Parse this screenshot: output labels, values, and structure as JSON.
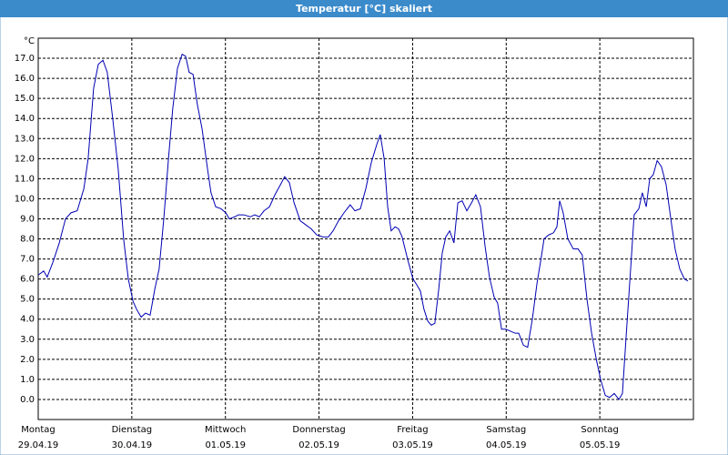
{
  "chart_data": {
    "type": "line",
    "title": "Temperatur [°C] skaliert",
    "y_unit": "°C",
    "x": [
      0,
      1.4,
      2.3,
      3.7,
      5.4,
      7.0,
      8.4,
      10.0,
      11.7,
      12.8,
      14.2,
      15.4,
      16.6,
      17.7,
      19.1,
      20.5,
      21.9,
      23.1,
      24.3,
      25.2,
      26.4,
      27.5,
      28.7,
      29.9,
      31.0,
      32.2,
      33.4,
      34.5,
      35.7,
      36.9,
      37.8,
      38.7,
      39.7,
      40.8,
      42.0,
      43.4,
      44.3,
      45.5,
      46.9,
      48.1,
      49.0,
      50.4,
      51.3,
      52.7,
      54.4,
      55.5,
      56.7,
      57.9,
      59.3,
      60.7,
      62.1,
      63.2,
      64.4,
      65.6,
      67.2,
      68.6,
      70.0,
      71.4,
      73.0,
      74.4,
      75.6,
      77.0,
      78.4,
      80.0,
      81.2,
      82.6,
      84.0,
      85.4,
      86.8,
      87.7,
      88.7,
      89.6,
      90.5,
      91.5,
      92.4,
      93.3,
      94.7,
      96.1,
      97.1,
      98.0,
      98.9,
      99.9,
      100.8,
      101.7,
      102.7,
      103.6,
      104.5,
      105.5,
      106.6,
      107.6,
      108.7,
      109.9,
      111.1,
      112.2,
      113.4,
      114.6,
      115.7,
      116.9,
      117.8,
      118.8,
      119.9,
      121.1,
      122.3,
      123.2,
      124.4,
      125.5,
      126.7,
      127.9,
      129.0,
      129.7,
      130.9,
      132.1,
      133.0,
      133.7,
      134.6,
      135.8,
      137.2,
      138.4,
      139.5,
      140.7,
      141.9,
      143.1,
      144.2,
      145.4,
      146.5,
      147.7,
      148.9,
      149.8,
      150.7,
      151.9,
      152.8,
      154.0,
      154.9,
      155.9,
      156.8,
      157.7,
      158.7,
      159.8,
      161.0,
      162.2,
      163.3,
      164.5,
      165.7,
      166.6
    ],
    "series": [
      {
        "color": "#0000b4",
        "values": [
          6.2,
          6.4,
          6.1,
          6.8,
          7.8,
          9.0,
          9.3,
          9.4,
          10.5,
          12,
          15.5,
          16.7,
          16.9,
          16.3,
          14,
          11.5,
          8,
          6,
          4.9,
          4.5,
          4.1,
          4.3,
          4.2,
          5.5,
          6.5,
          9,
          12,
          14.5,
          16.5,
          17.2,
          17.1,
          16.3,
          16.2,
          14.7,
          13.5,
          11.5,
          10.3,
          9.6,
          9.5,
          9.3,
          9.0,
          9.1,
          9.2,
          9.2,
          9.1,
          9.2,
          9.1,
          9.4,
          9.6,
          10.2,
          10.7,
          11.1,
          10.8,
          9.8,
          8.9,
          8.7,
          8.5,
          8.2,
          8.1,
          8.1,
          8.4,
          8.9,
          9.3,
          9.7,
          9.4,
          9.5,
          10.5,
          11.8,
          12.7,
          13.2,
          12,
          9.6,
          8.4,
          8.6,
          8.5,
          8.1,
          7.0,
          6.0,
          5.7,
          5.4,
          4.5,
          3.9,
          3.7,
          3.8,
          5.5,
          7.3,
          8.1,
          8.4,
          7.8,
          9.8,
          9.9,
          9.4,
          9.8,
          10.2,
          9.6,
          7.6,
          6.1,
          5.1,
          4.8,
          3.5,
          3.5,
          3.4,
          3.3,
          3.3,
          2.7,
          2.6,
          4.0,
          5.8,
          7.1,
          8.0,
          8.2,
          8.3,
          8.6,
          9.9,
          9.3,
          8.0,
          7.5,
          7.5,
          7.2,
          5.0,
          3.3,
          2.0,
          1.0,
          0.2,
          0.1,
          0.3,
          0.0,
          0.3,
          3.0,
          6.5,
          9.2,
          9.5,
          10.3,
          9.6,
          11.0,
          11.2,
          11.9,
          11.6,
          10.7,
          9.0,
          7.5,
          6.5,
          6.0,
          5.9
        ]
      }
    ],
    "xlim": [
      0,
      168
    ],
    "ylim": [
      -1,
      18
    ],
    "xticks": [
      {
        "value": 0,
        "label": "Montag",
        "date": "29.04.19"
      },
      {
        "value": 24,
        "label": "Dienstag",
        "date": "30.04.19"
      },
      {
        "value": 48,
        "label": "Mittwoch",
        "date": "01.05.19"
      },
      {
        "value": 72,
        "label": "Donnerstag",
        "date": "02.05.19"
      },
      {
        "value": 96,
        "label": "Freitag",
        "date": "03.05.19"
      },
      {
        "value": 120,
        "label": "Samstag",
        "date": "04.05.19"
      },
      {
        "value": 144,
        "label": "Sonntag",
        "date": "05.05.19"
      }
    ],
    "yticks": [
      {
        "value": 0,
        "label": "0.0"
      },
      {
        "value": 1,
        "label": "1.0"
      },
      {
        "value": 2,
        "label": "2.0"
      },
      {
        "value": 3,
        "label": "3.0"
      },
      {
        "value": 4,
        "label": "4.0"
      },
      {
        "value": 5,
        "label": "5.0"
      },
      {
        "value": 6,
        "label": "6.0"
      },
      {
        "value": 7,
        "label": "7.0"
      },
      {
        "value": 8,
        "label": "8.0"
      },
      {
        "value": 9,
        "label": "9.0"
      },
      {
        "value": 10,
        "label": "10.0"
      },
      {
        "value": 11,
        "label": "11.0"
      },
      {
        "value": 12,
        "label": "12.0"
      },
      {
        "value": 13,
        "label": "13.0"
      },
      {
        "value": 14,
        "label": "14.0"
      },
      {
        "value": 15,
        "label": "15.0"
      },
      {
        "value": 16,
        "label": "16.0"
      },
      {
        "value": 17,
        "label": "17.0"
      }
    ],
    "grid": true
  }
}
